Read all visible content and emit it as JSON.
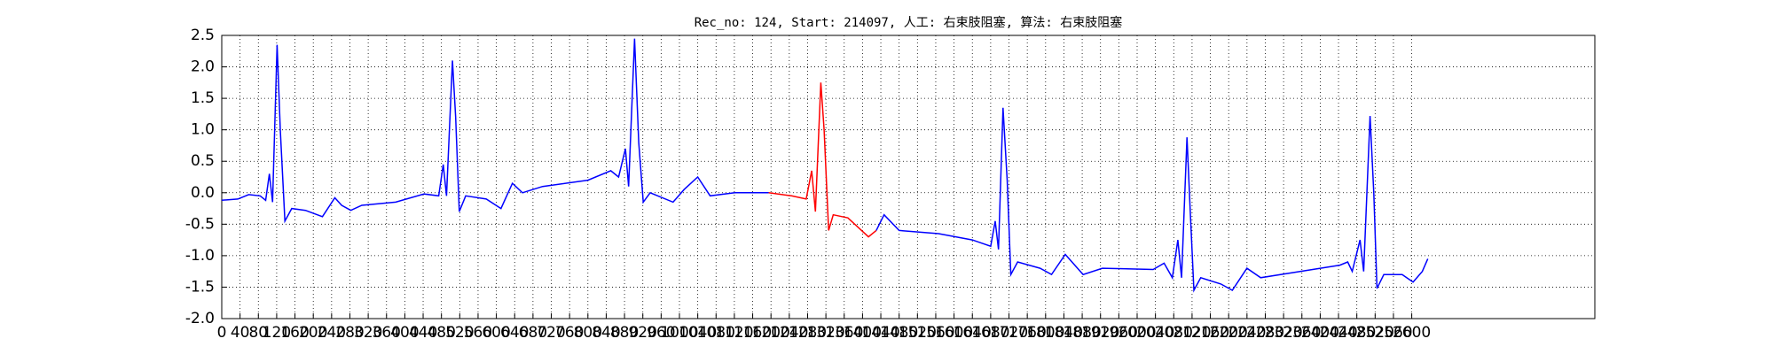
{
  "chart_data": {
    "type": "line",
    "title": "Rec_no: 124, Start: 214097, 人工: 右束肢阻塞, 算法: 右束肢阻塞",
    "xlim": [
      0,
      3000
    ],
    "xticks": [
      0,
      40,
      80,
      120,
      160,
      200,
      240,
      280,
      320,
      360,
      400,
      440,
      480,
      520,
      560,
      600,
      640,
      680,
      720,
      760,
      800,
      840,
      880,
      920,
      960,
      1000,
      1040,
      1080,
      1120,
      1160,
      1200,
      1240,
      1280,
      1320,
      1360,
      1400,
      1440,
      1480,
      1520,
      1560,
      1600,
      1640,
      1680,
      1720,
      1760,
      1800,
      1840,
      1880,
      1920,
      1960,
      2000,
      2040,
      2080,
      2120,
      2160,
      2200,
      2240,
      2280,
      2320,
      2360,
      2400,
      2440,
      2480,
      2520,
      2560,
      2600
    ],
    "ylim": [
      -2,
      2.5
    ],
    "yticks": [
      {
        "value": -2,
        "label": "-2.0"
      },
      -1.5,
      {
        "value": -1,
        "label": "-1.0"
      },
      -0.5,
      {
        "value": 0,
        "label": "0.0"
      },
      0.5,
      {
        "value": 1,
        "label": "1.0"
      },
      1.5,
      {
        "value": 2,
        "label": "2.0"
      },
      2.5
    ],
    "grid": true,
    "series": [
      {
        "color": "#0000ff",
        "x": [
          0,
          35,
          59,
          84,
          96,
          104,
          111,
          121,
          128,
          138,
          153,
          183,
          220,
          247,
          262,
          282,
          306,
          380,
          442,
          474,
          484,
          491,
          504,
          511,
          519,
          533,
          578,
          610,
          635,
          657,
          701,
          800,
          850,
          867,
          882,
          889,
          902,
          911,
          921,
          936,
          986,
          1010,
          1040,
          1067,
          1121,
          1195
        ],
        "values": [
          -0.12,
          -0.1,
          -0.03,
          -0.05,
          -0.12,
          0.3,
          -0.15,
          2.35,
          1.0,
          -0.45,
          -0.25,
          -0.28,
          -0.38,
          -0.08,
          -0.2,
          -0.28,
          -0.2,
          -0.15,
          -0.02,
          -0.05,
          0.45,
          -0.05,
          2.1,
          1.2,
          -0.3,
          -0.05,
          -0.1,
          -0.25,
          0.15,
          0.0,
          0.1,
          0.2,
          0.35,
          0.25,
          0.7,
          0.1,
          2.45,
          0.8,
          -0.15,
          0.0,
          -0.15,
          0.05,
          0.25,
          -0.05,
          0.0,
          0.0
        ]
      },
      {
        "color": "#ff0000",
        "x": [
          1195,
          1245,
          1277,
          1289,
          1297,
          1309,
          1316,
          1326,
          1336,
          1368,
          1413,
          1430
        ],
        "values": [
          0.0,
          -0.05,
          -0.1,
          0.35,
          -0.3,
          1.75,
          1.0,
          -0.6,
          -0.35,
          -0.4,
          -0.7,
          -0.6
        ]
      },
      {
        "color": "#0000ff",
        "x": [
          1430,
          1447,
          1480,
          1566,
          1640,
          1660,
          1680,
          1690,
          1697,
          1707,
          1716,
          1724,
          1739,
          1788,
          1813,
          1843,
          1882,
          1924,
          2035,
          2059,
          2077,
          2089,
          2097,
          2109,
          2116,
          2124,
          2139,
          2183,
          2208,
          2240,
          2270,
          2356,
          2443,
          2460,
          2470,
          2487,
          2495,
          2509,
          2517,
          2524,
          2539,
          2579,
          2603,
          2623,
          2635
        ],
        "values": [
          -0.6,
          -0.35,
          -0.6,
          -0.65,
          -0.75,
          -0.8,
          -0.85,
          -0.45,
          -0.9,
          1.35,
          0.2,
          -1.3,
          -1.1,
          -1.2,
          -1.3,
          -0.98,
          -1.3,
          -1.2,
          -1.22,
          -1.12,
          -1.35,
          -0.75,
          -1.35,
          0.88,
          -0.3,
          -1.55,
          -1.35,
          -1.45,
          -1.55,
          -1.2,
          -1.35,
          -1.25,
          -1.15,
          -1.1,
          -1.25,
          -0.75,
          -1.25,
          1.22,
          0.0,
          -1.52,
          -1.3,
          -1.3,
          -1.42,
          -1.25,
          -1.05
        ]
      }
    ]
  }
}
